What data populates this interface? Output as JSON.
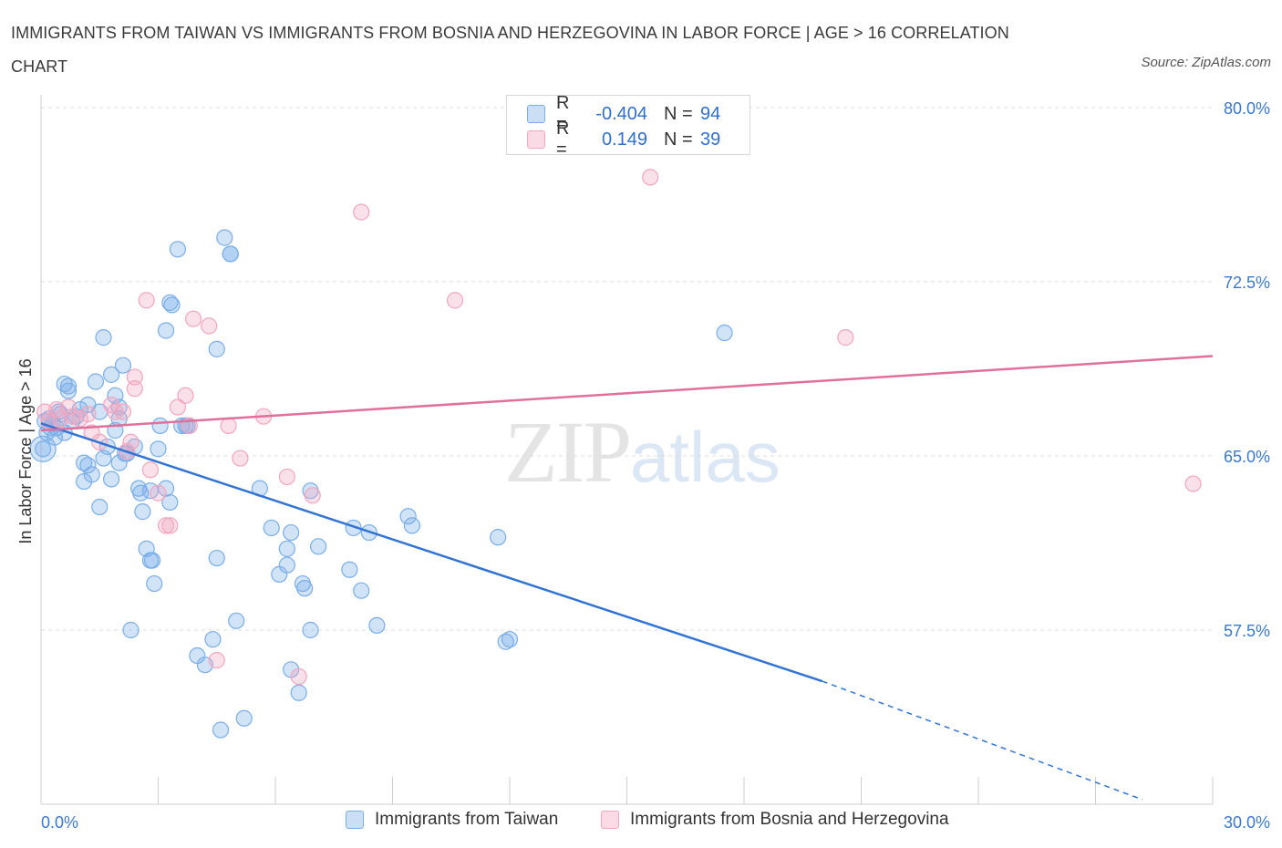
{
  "title": "IMMIGRANTS FROM TAIWAN VS IMMIGRANTS FROM BOSNIA AND HERZEGOVINA IN LABOR FORCE | AGE > 16 CORRELATION CHART",
  "source": "Source: ZipAtlas.com",
  "watermark": {
    "zip": "ZIP",
    "atlas": "atlas"
  },
  "legend": {
    "rows": [
      {
        "r_label": "R =",
        "r_value": "-0.404",
        "n_label": "N =",
        "n_value": "94",
        "color": "#7aaee8"
      },
      {
        "r_label": "R =",
        "r_value": "0.149",
        "n_label": "N =",
        "n_value": "39",
        "color": "#f2a6bf"
      }
    ]
  },
  "bottom_legend": [
    {
      "label": "Immigrants from Taiwan",
      "color": "#7aaee8"
    },
    {
      "label": "Immigrants from Bosnia and Herzegovina",
      "color": "#f2a6bf"
    }
  ],
  "chart_data": {
    "type": "scatter",
    "title": "IMMIGRANTS FROM TAIWAN VS IMMIGRANTS FROM BOSNIA AND HERZEGOVINA IN LABOR FORCE | AGE > 16 CORRELATION CHART",
    "xlabel": "",
    "ylabel": "In Labor Force | Age > 16",
    "xlim": [
      0,
      30
    ],
    "ylim": [
      50,
      80
    ],
    "x_tick_labels": [
      "0.0%",
      "30.0%"
    ],
    "y_tick_labels": [
      "57.5%",
      "65.0%",
      "72.5%",
      "80.0%"
    ],
    "y_ticks": [
      57.5,
      65.0,
      72.5,
      80.0
    ],
    "grid": true,
    "legend_position": "top-center",
    "series": [
      {
        "name": "Immigrants from Taiwan",
        "color": "#7aaee8",
        "line_color": "#3274d4",
        "trend": {
          "x0": 0.0,
          "y0": 66.4,
          "x1": 20.0,
          "y1": 55.3,
          "dashed_to_x": 28.2,
          "dashed_to_y": 50.2
        },
        "points": [
          [
            0.05,
            65.3
          ],
          [
            0.1,
            66.5
          ],
          [
            0.2,
            66.6
          ],
          [
            0.3,
            66.4
          ],
          [
            0.4,
            66.2
          ],
          [
            0.5,
            66.8
          ],
          [
            0.6,
            66.0
          ],
          [
            0.7,
            67.8
          ],
          [
            0.8,
            66.5
          ],
          [
            0.9,
            66.7
          ],
          [
            0.6,
            68.1
          ],
          [
            0.7,
            68.0
          ],
          [
            1.0,
            67.0
          ],
          [
            1.2,
            67.2
          ],
          [
            1.4,
            68.2
          ],
          [
            1.6,
            70.1
          ],
          [
            1.8,
            68.5
          ],
          [
            2.1,
            68.9
          ],
          [
            1.9,
            67.6
          ],
          [
            2.0,
            67.1
          ],
          [
            1.9,
            66.1
          ],
          [
            2.0,
            66.6
          ],
          [
            1.7,
            65.4
          ],
          [
            1.6,
            64.9
          ],
          [
            1.1,
            64.7
          ],
          [
            1.2,
            64.6
          ],
          [
            1.1,
            63.9
          ],
          [
            1.8,
            64.0
          ],
          [
            1.5,
            62.8
          ],
          [
            2.2,
            65.1
          ],
          [
            2.4,
            65.4
          ],
          [
            2.5,
            63.6
          ],
          [
            2.55,
            63.4
          ],
          [
            2.6,
            62.6
          ],
          [
            2.8,
            63.5
          ],
          [
            3.0,
            65.3
          ],
          [
            3.05,
            66.3
          ],
          [
            3.2,
            63.6
          ],
          [
            3.3,
            63.0
          ],
          [
            2.7,
            61.0
          ],
          [
            2.8,
            60.5
          ],
          [
            2.85,
            60.5
          ],
          [
            2.9,
            59.5
          ],
          [
            2.3,
            57.5
          ],
          [
            3.2,
            70.4
          ],
          [
            3.3,
            71.6
          ],
          [
            3.35,
            71.5
          ],
          [
            3.5,
            73.9
          ],
          [
            3.6,
            66.3
          ],
          [
            3.7,
            66.3
          ],
          [
            3.75,
            66.3
          ],
          [
            4.5,
            69.6
          ],
          [
            4.7,
            74.4
          ],
          [
            4.85,
            73.7
          ],
          [
            4.5,
            60.6
          ],
          [
            4.4,
            57.1
          ],
          [
            4.0,
            56.4
          ],
          [
            4.2,
            56.0
          ],
          [
            5.0,
            57.9
          ],
          [
            5.2,
            53.7
          ],
          [
            4.6,
            53.2
          ],
          [
            5.6,
            63.6
          ],
          [
            5.9,
            61.9
          ],
          [
            6.1,
            59.9
          ],
          [
            6.3,
            61.0
          ],
          [
            6.3,
            60.3
          ],
          [
            6.4,
            61.7
          ],
          [
            6.7,
            59.5
          ],
          [
            6.75,
            59.3
          ],
          [
            6.9,
            57.5
          ],
          [
            6.9,
            63.5
          ],
          [
            7.1,
            61.1
          ],
          [
            6.4,
            55.8
          ],
          [
            6.6,
            54.8
          ],
          [
            7.9,
            60.1
          ],
          [
            8.0,
            61.9
          ],
          [
            8.2,
            59.2
          ],
          [
            8.4,
            61.7
          ],
          [
            8.6,
            57.7
          ],
          [
            9.4,
            62.4
          ],
          [
            9.5,
            62.0
          ],
          [
            11.7,
            61.5
          ],
          [
            11.9,
            57.0
          ],
          [
            12.0,
            57.1
          ],
          [
            17.5,
            70.3
          ],
          [
            4.85,
            73.7
          ],
          [
            1.3,
            64.2
          ],
          [
            2.15,
            65.1
          ],
          [
            1.5,
            66.9
          ],
          [
            0.25,
            66.2
          ],
          [
            0.35,
            65.8
          ],
          [
            0.45,
            66.9
          ],
          [
            0.15,
            66.0
          ],
          [
            2.0,
            64.7
          ]
        ]
      },
      {
        "name": "Immigrants from Bosnia and Herzegovina",
        "color": "#f2a6bf",
        "line_color": "#e0709a",
        "trend": {
          "x0": 0.0,
          "y0": 66.1,
          "x1": 30.0,
          "y1": 69.3
        },
        "points": [
          [
            0.1,
            66.9
          ],
          [
            0.2,
            66.5
          ],
          [
            0.4,
            67.0
          ],
          [
            0.5,
            66.6
          ],
          [
            0.7,
            67.1
          ],
          [
            0.8,
            66.7
          ],
          [
            1.0,
            66.6
          ],
          [
            1.2,
            66.8
          ],
          [
            1.3,
            66.0
          ],
          [
            1.5,
            65.6
          ],
          [
            1.8,
            67.2
          ],
          [
            1.9,
            66.9
          ],
          [
            2.1,
            66.9
          ],
          [
            2.3,
            65.6
          ],
          [
            2.4,
            68.4
          ],
          [
            2.2,
            65.2
          ],
          [
            2.7,
            71.7
          ],
          [
            2.8,
            64.4
          ],
          [
            3.0,
            63.4
          ],
          [
            3.2,
            62.0
          ],
          [
            3.3,
            62.0
          ],
          [
            3.5,
            67.1
          ],
          [
            3.7,
            67.6
          ],
          [
            3.8,
            66.3
          ],
          [
            3.9,
            70.9
          ],
          [
            4.3,
            70.6
          ],
          [
            4.8,
            66.3
          ],
          [
            5.1,
            64.9
          ],
          [
            5.7,
            66.7
          ],
          [
            6.3,
            64.1
          ],
          [
            6.95,
            63.3
          ],
          [
            4.5,
            56.2
          ],
          [
            6.6,
            55.5
          ],
          [
            8.2,
            75.5
          ],
          [
            10.6,
            71.7
          ],
          [
            15.6,
            77.0
          ],
          [
            20.6,
            70.1
          ],
          [
            29.5,
            63.8
          ],
          [
            2.4,
            67.9
          ]
        ]
      }
    ]
  }
}
